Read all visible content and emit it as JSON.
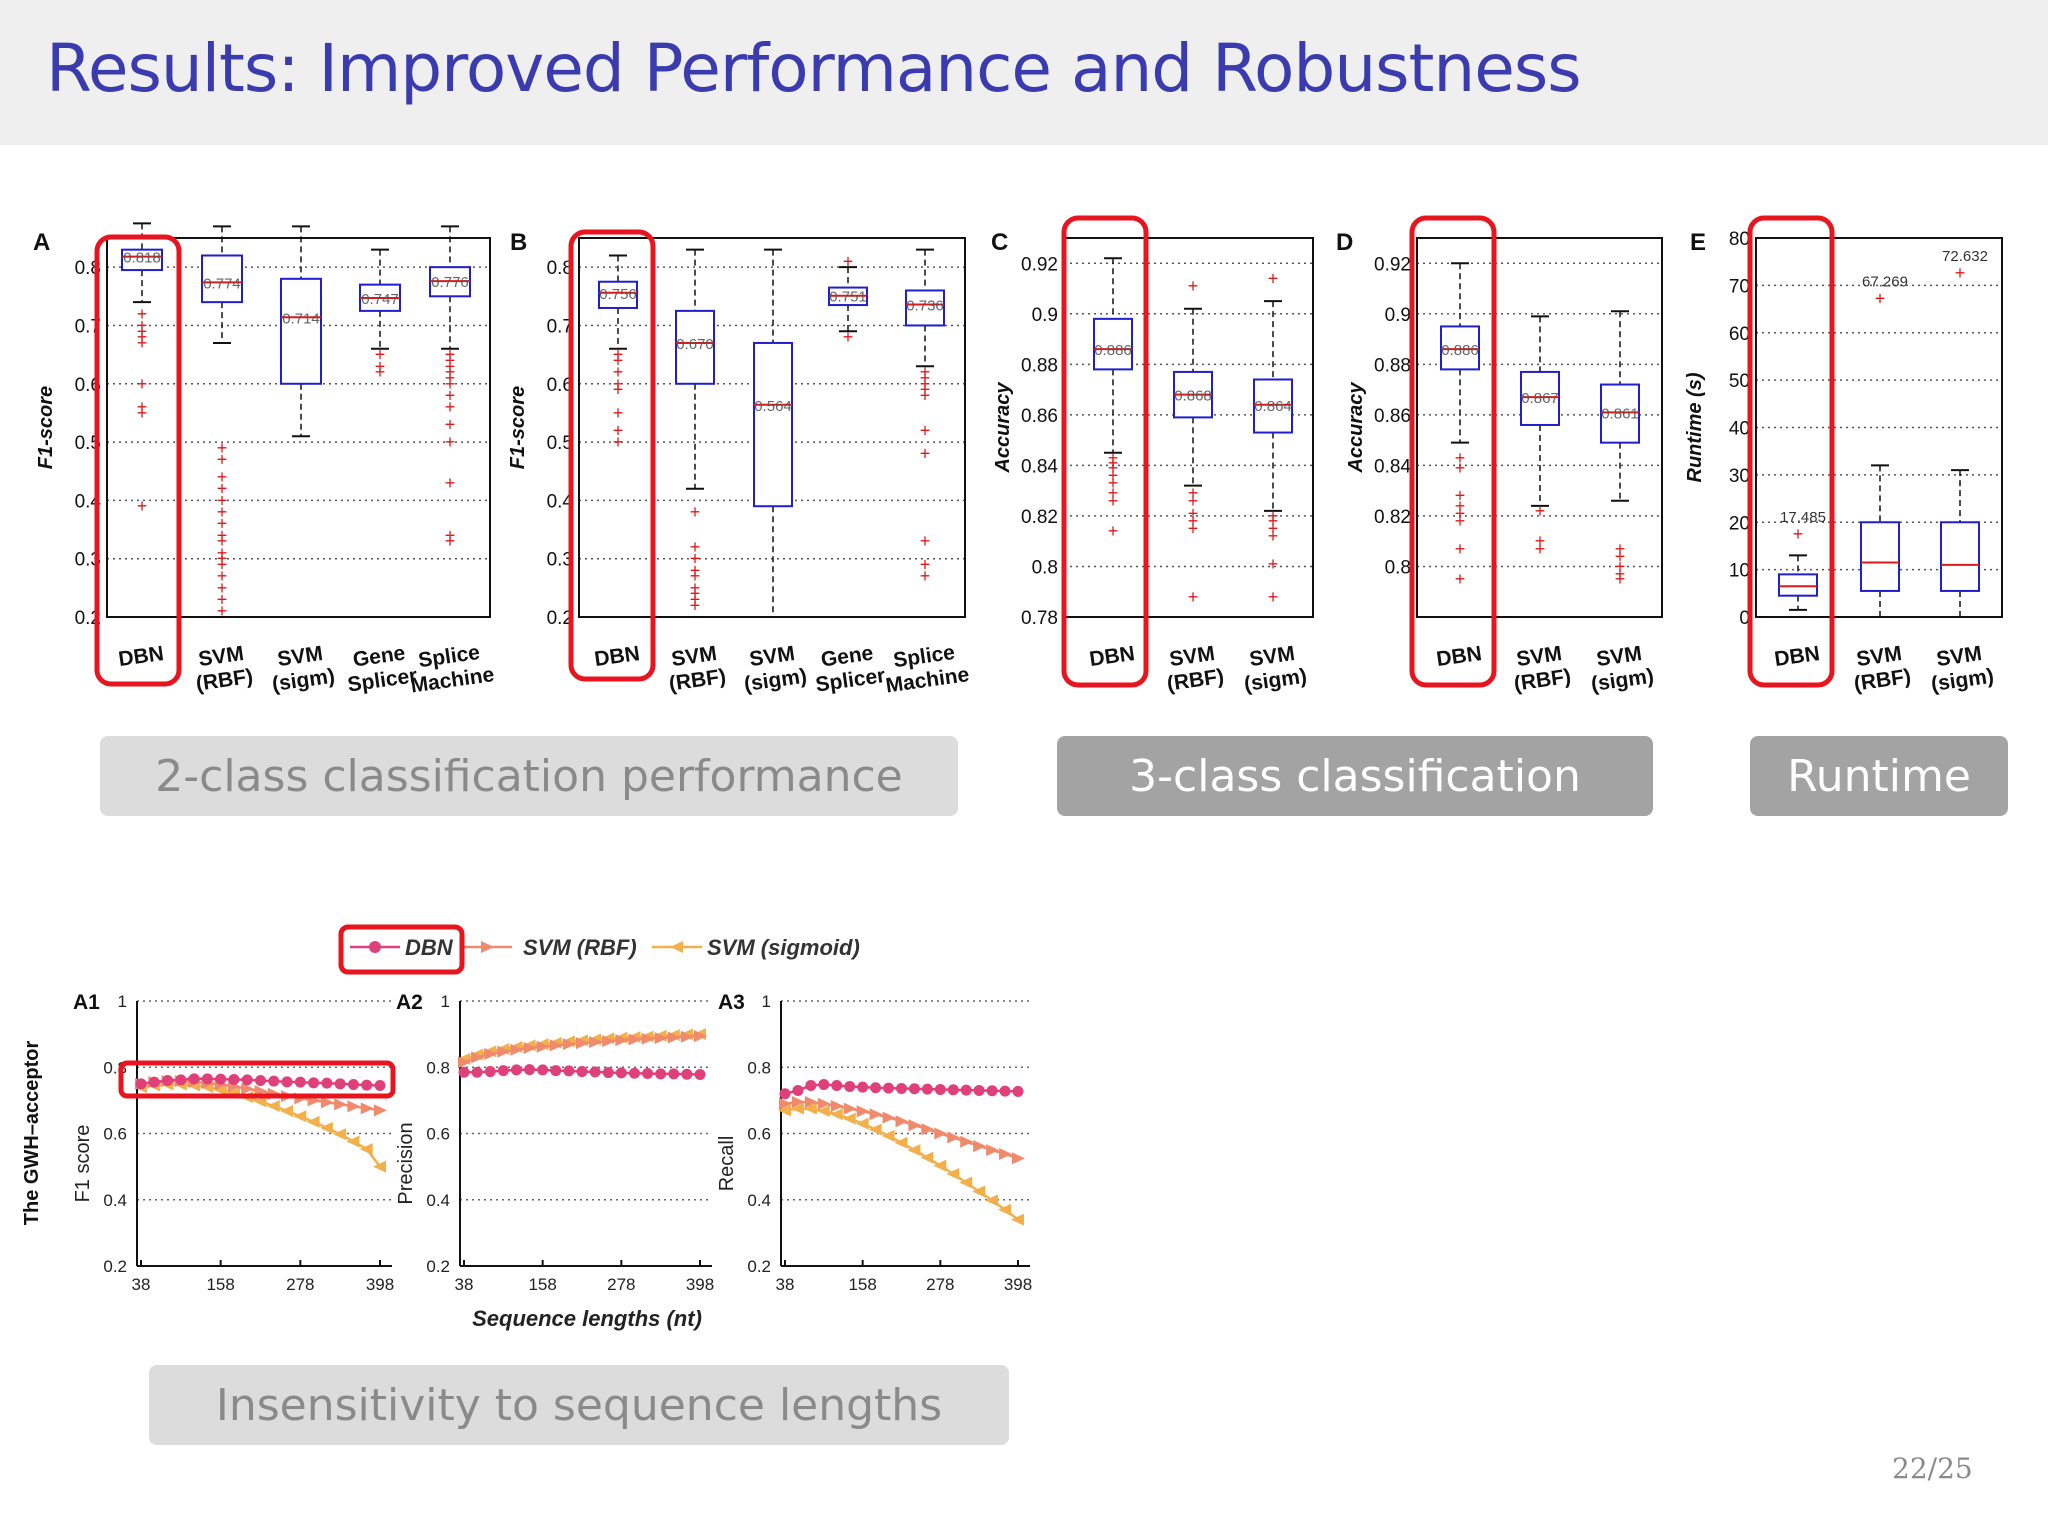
{
  "slide": {
    "title": "Results: Improved Performance and Robustness",
    "page_number": "22/25"
  },
  "captions": {
    "two_class": "2-class classification performance",
    "three_class": "3-class classification",
    "runtime": "Runtime",
    "lengths": "Insensitivity to sequence lengths"
  },
  "colors": {
    "title": "#3b3bb0",
    "box": "#1f1fd0",
    "median": "#e01818",
    "outlier": "#e01818",
    "highlight": "#e8141e",
    "dbn_line": "#e0407a",
    "svm_rbf_line": "#f08a6c",
    "svm_sigmoid_line": "#f3b04a"
  },
  "chart_data": [
    {
      "type": "box",
      "panel": "A",
      "ylabel": "F1-score",
      "ylim": [
        0.2,
        0.85
      ],
      "yticks": [
        "0.2",
        "0.3",
        "0.4",
        "0.5",
        "0.6",
        "0.7",
        "0.8"
      ],
      "categories": [
        [
          "DBN"
        ],
        [
          "SVM",
          "(RBF)"
        ],
        [
          "SVM",
          "(sigm)"
        ],
        [
          "Gene",
          "Splicer"
        ],
        [
          "Splice",
          "Machine"
        ]
      ],
      "medians": [
        0.818,
        0.774,
        0.714,
        0.747,
        0.776
      ],
      "boxes": [
        [
          0.795,
          0.83
        ],
        [
          0.74,
          0.82
        ],
        [
          0.6,
          0.78
        ],
        [
          0.725,
          0.77
        ],
        [
          0.75,
          0.8
        ]
      ],
      "whiskers": [
        [
          0.74,
          0.875
        ],
        [
          0.67,
          0.87
        ],
        [
          0.51,
          0.87
        ],
        [
          0.66,
          0.83
        ],
        [
          0.66,
          0.87
        ]
      ],
      "outliers": [
        [
          0.72,
          0.7,
          0.69,
          0.68,
          0.67,
          0.6,
          0.56,
          0.55,
          0.39
        ],
        [
          0.49,
          0.47,
          0.44,
          0.42,
          0.4,
          0.38,
          0.36,
          0.34,
          0.33,
          0.31,
          0.3,
          0.29,
          0.27,
          0.25,
          0.23,
          0.21
        ],
        [],
        [
          0.65,
          0.63,
          0.62
        ],
        [
          0.65,
          0.64,
          0.63,
          0.62,
          0.61,
          0.6,
          0.58,
          0.56,
          0.53,
          0.5,
          0.43,
          0.34,
          0.33
        ]
      ],
      "data_labels": [
        "0.818",
        "0.774",
        "0.714",
        "0.747",
        "0.776"
      ],
      "highlight_category": 0
    },
    {
      "type": "box",
      "panel": "B",
      "ylabel": "F1-score",
      "ylim": [
        0.2,
        0.85
      ],
      "yticks": [
        "0.2",
        "0.3",
        "0.4",
        "0.5",
        "0.6",
        "0.7",
        "0.8"
      ],
      "categories": [
        [
          "DBN"
        ],
        [
          "SVM",
          "(RBF)"
        ],
        [
          "SVM",
          "(sigm)"
        ],
        [
          "Gene",
          "Splicer"
        ],
        [
          "Splice",
          "Machine"
        ]
      ],
      "medians": [
        0.756,
        0.67,
        0.564,
        0.751,
        0.736
      ],
      "boxes": [
        [
          0.73,
          0.775
        ],
        [
          0.6,
          0.725
        ],
        [
          0.39,
          0.67
        ],
        [
          0.735,
          0.765
        ],
        [
          0.7,
          0.76
        ]
      ],
      "whiskers": [
        [
          0.66,
          0.82
        ],
        [
          0.42,
          0.83
        ],
        [
          0.2,
          0.83
        ],
        [
          0.69,
          0.8
        ],
        [
          0.63,
          0.83
        ]
      ],
      "outliers": [
        [
          0.65,
          0.64,
          0.62,
          0.6,
          0.59,
          0.55,
          0.52,
          0.5
        ],
        [
          0.38,
          0.32,
          0.3,
          0.28,
          0.27,
          0.25,
          0.24,
          0.23,
          0.22
        ],
        [],
        [
          0.81,
          0.68
        ],
        [
          0.62,
          0.61,
          0.6,
          0.59,
          0.58,
          0.52,
          0.48,
          0.33,
          0.29,
          0.27
        ]
      ],
      "data_labels": [
        "0.756",
        "0.670",
        "0.564",
        "0.751",
        "0.736"
      ],
      "highlight_category": 0
    },
    {
      "type": "box",
      "panel": "C",
      "ylabel": "Accuracy",
      "ylim": [
        0.78,
        0.93
      ],
      "yticks": [
        "0.78",
        "0.8",
        "0.82",
        "0.84",
        "0.86",
        "0.88",
        "0.9",
        "0.92"
      ],
      "categories": [
        [
          "DBN"
        ],
        [
          "SVM",
          "(RBF)"
        ],
        [
          "SVM",
          "(sigm)"
        ]
      ],
      "medians": [
        0.886,
        0.868,
        0.864
      ],
      "boxes": [
        [
          0.878,
          0.898
        ],
        [
          0.859,
          0.877
        ],
        [
          0.853,
          0.874
        ]
      ],
      "whiskers": [
        [
          0.845,
          0.922
        ],
        [
          0.832,
          0.902
        ],
        [
          0.822,
          0.905
        ]
      ],
      "outliers": [
        [
          0.843,
          0.841,
          0.839,
          0.836,
          0.833,
          0.829,
          0.826,
          0.814
        ],
        [
          0.911,
          0.829,
          0.826,
          0.821,
          0.818,
          0.815,
          0.788
        ],
        [
          0.914,
          0.82,
          0.818,
          0.815,
          0.812,
          0.801,
          0.788
        ]
      ],
      "data_labels": [
        "0.886",
        "0.868",
        "0.864"
      ],
      "highlight_category": 0
    },
    {
      "type": "box",
      "panel": "D",
      "ylabel": "Accuracy",
      "ylim": [
        0.78,
        0.93
      ],
      "yticks": [
        "0.8",
        "0.82",
        "0.84",
        "0.86",
        "0.88",
        "0.9",
        "0.92"
      ],
      "categories": [
        [
          "DBN"
        ],
        [
          "SVM",
          "(RBF)"
        ],
        [
          "SVM",
          "(sigm)"
        ]
      ],
      "medians": [
        0.886,
        0.867,
        0.861
      ],
      "boxes": [
        [
          0.878,
          0.895
        ],
        [
          0.856,
          0.877
        ],
        [
          0.849,
          0.872
        ]
      ],
      "whiskers": [
        [
          0.849,
          0.92
        ],
        [
          0.824,
          0.899
        ],
        [
          0.826,
          0.901
        ]
      ],
      "outliers": [
        [
          0.843,
          0.839,
          0.828,
          0.824,
          0.821,
          0.818,
          0.807,
          0.795
        ],
        [
          0.822,
          0.81,
          0.807
        ],
        [
          0.807,
          0.804,
          0.8,
          0.797,
          0.795
        ]
      ],
      "data_labels": [
        "0.886",
        "0.867",
        "0.861"
      ],
      "highlight_category": 0
    },
    {
      "type": "box",
      "panel": "E",
      "ylabel": "Runtime (s)",
      "ylim": [
        0,
        80
      ],
      "yticks": [
        "0",
        "10",
        "20",
        "30",
        "40",
        "50",
        "60",
        "70",
        "80"
      ],
      "categories": [
        [
          "DBN"
        ],
        [
          "SVM",
          "(RBF)"
        ],
        [
          "SVM",
          "(sigm)"
        ]
      ],
      "medians": [
        6.5,
        11.5,
        11
      ],
      "boxes": [
        [
          4.5,
          9
        ],
        [
          5.5,
          20
        ],
        [
          5.5,
          20
        ]
      ],
      "whiskers": [
        [
          1.5,
          13
        ],
        [
          0,
          32
        ],
        [
          0,
          31
        ]
      ],
      "outliers": [
        [
          17.485
        ],
        [
          67.269
        ],
        [
          72.632
        ]
      ],
      "data_labels": [
        "17.485",
        "67.269",
        "72.632"
      ],
      "highlight_category": 0
    },
    {
      "type": "line",
      "panel": "A1",
      "ylabel": "F1 score",
      "row_label": "The GWH–acceptor",
      "xticks": [
        "38",
        "158",
        "278",
        "398"
      ],
      "yticks": [
        "0.2",
        "0.4",
        "0.6",
        "0.8",
        "1"
      ],
      "xlim": [
        38,
        398
      ],
      "ylim": [
        0.2,
        1
      ],
      "x": [
        38,
        58,
        78,
        98,
        118,
        138,
        158,
        178,
        198,
        218,
        238,
        258,
        278,
        298,
        318,
        338,
        358,
        378,
        398
      ],
      "series": [
        {
          "name": "DBN",
          "values": [
            0.75,
            0.755,
            0.76,
            0.762,
            0.765,
            0.765,
            0.764,
            0.763,
            0.762,
            0.76,
            0.758,
            0.756,
            0.755,
            0.753,
            0.752,
            0.75,
            0.748,
            0.746,
            0.745
          ]
        },
        {
          "name": "SVM (RBF)",
          "values": [
            0.75,
            0.755,
            0.758,
            0.758,
            0.756,
            0.752,
            0.748,
            0.742,
            0.735,
            0.728,
            0.72,
            0.713,
            0.706,
            0.7,
            0.694,
            0.688,
            0.682,
            0.676,
            0.67
          ]
        },
        {
          "name": "SVM (sigmoid)",
          "values": [
            0.74,
            0.745,
            0.748,
            0.748,
            0.745,
            0.74,
            0.732,
            0.722,
            0.71,
            0.697,
            0.683,
            0.668,
            0.652,
            0.635,
            0.617,
            0.598,
            0.576,
            0.553,
            0.5
          ]
        }
      ],
      "highlight": "DBN"
    },
    {
      "type": "line",
      "panel": "A2",
      "ylabel": "Precision",
      "xticks": [
        "38",
        "158",
        "278",
        "398"
      ],
      "yticks": [
        "0.2",
        "0.4",
        "0.6",
        "0.8",
        "1"
      ],
      "xlim": [
        38,
        398
      ],
      "ylim": [
        0.2,
        1
      ],
      "x": [
        38,
        58,
        78,
        98,
        118,
        138,
        158,
        178,
        198,
        218,
        238,
        258,
        278,
        298,
        318,
        338,
        358,
        378,
        398
      ],
      "series": [
        {
          "name": "DBN",
          "values": [
            0.785,
            0.785,
            0.787,
            0.79,
            0.792,
            0.793,
            0.792,
            0.79,
            0.789,
            0.787,
            0.786,
            0.784,
            0.783,
            0.782,
            0.781,
            0.78,
            0.78,
            0.779,
            0.778
          ]
        },
        {
          "name": "SVM (RBF)",
          "values": [
            0.815,
            0.83,
            0.84,
            0.847,
            0.853,
            0.858,
            0.862,
            0.866,
            0.87,
            0.873,
            0.876,
            0.879,
            0.882,
            0.884,
            0.886,
            0.888,
            0.89,
            0.892,
            0.894
          ]
        },
        {
          "name": "SVM (sigmoid)",
          "values": [
            0.825,
            0.838,
            0.848,
            0.855,
            0.861,
            0.866,
            0.87,
            0.874,
            0.878,
            0.881,
            0.884,
            0.887,
            0.889,
            0.891,
            0.893,
            0.895,
            0.897,
            0.899,
            0.9
          ]
        }
      ]
    },
    {
      "type": "line",
      "panel": "A3",
      "ylabel": "Recall",
      "xticks": [
        "38",
        "158",
        "278",
        "398"
      ],
      "yticks": [
        "0.2",
        "0.4",
        "0.6",
        "0.8",
        "1"
      ],
      "xlim": [
        38,
        398
      ],
      "ylim": [
        0.2,
        1
      ],
      "x": [
        38,
        58,
        78,
        98,
        118,
        138,
        158,
        178,
        198,
        218,
        238,
        258,
        278,
        298,
        318,
        338,
        358,
        378,
        398
      ],
      "series": [
        {
          "name": "DBN",
          "values": [
            0.72,
            0.73,
            0.745,
            0.748,
            0.745,
            0.742,
            0.74,
            0.738,
            0.737,
            0.736,
            0.735,
            0.734,
            0.733,
            0.732,
            0.731,
            0.73,
            0.729,
            0.728,
            0.727
          ]
        },
        {
          "name": "SVM (RBF)",
          "values": [
            0.69,
            0.695,
            0.695,
            0.69,
            0.683,
            0.675,
            0.667,
            0.658,
            0.648,
            0.637,
            0.625,
            0.613,
            0.6,
            0.588,
            0.575,
            0.562,
            0.55,
            0.538,
            0.525
          ]
        },
        {
          "name": "SVM (sigmoid)",
          "values": [
            0.67,
            0.675,
            0.675,
            0.668,
            0.658,
            0.645,
            0.63,
            0.612,
            0.593,
            0.572,
            0.55,
            0.527,
            0.503,
            0.478,
            0.452,
            0.425,
            0.398,
            0.37,
            0.34
          ]
        }
      ]
    }
  ],
  "lines_legend": [
    "DBN",
    "SVM (RBF)",
    "SVM (sigmoid)"
  ],
  "lines_xlabel": "Sequence lengths (nt)"
}
